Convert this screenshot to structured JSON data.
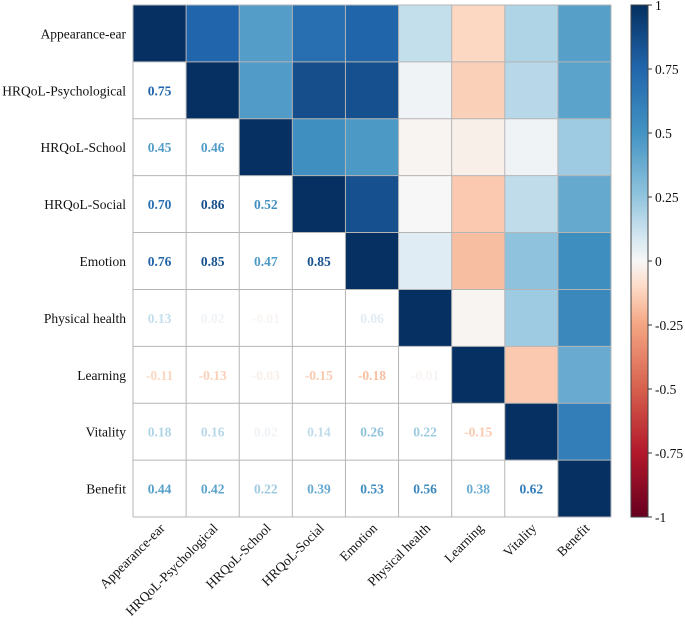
{
  "chart_data": {
    "type": "heatmap",
    "title": "",
    "variables": [
      "Appearance-ear",
      "HRQoL-Psychological",
      "HRQoL-School",
      "HRQoL-Social",
      "Emotion",
      "Physical health",
      "Learning",
      "Vitality",
      "Benefit"
    ],
    "lower_triangle_labels": [
      [
        null,
        null,
        null,
        null,
        null,
        null,
        null,
        null,
        null
      ],
      [
        "0.75",
        null,
        null,
        null,
        null,
        null,
        null,
        null,
        null
      ],
      [
        "0.45",
        "0.46",
        null,
        null,
        null,
        null,
        null,
        null,
        null
      ],
      [
        "0.70",
        "0.86",
        "0.52",
        null,
        null,
        null,
        null,
        null,
        null
      ],
      [
        "0.76",
        "0.85",
        "0.47",
        "0.85",
        null,
        null,
        null,
        null,
        null
      ],
      [
        "0.13",
        "0.02",
        "-0.01",
        "",
        "0.06",
        null,
        null,
        null,
        null
      ],
      [
        "-0.11",
        "-0.13",
        "-0.03",
        "-0.15",
        "-0.18",
        "-0.01",
        null,
        null,
        null
      ],
      [
        "0.18",
        "0.16",
        "0.02",
        "0.14",
        "0.26",
        "0.22",
        "-0.15",
        null,
        null
      ],
      [
        "0.44",
        "0.42",
        "0.22",
        "0.39",
        "0.53",
        "0.56",
        "0.38",
        "0.62",
        null
      ]
    ],
    "matrix": [
      [
        1,
        0.75,
        0.45,
        0.7,
        0.76,
        0.13,
        -0.11,
        0.18,
        0.44
      ],
      [
        0.75,
        1,
        0.46,
        0.86,
        0.85,
        0.02,
        -0.13,
        0.16,
        0.42
      ],
      [
        0.45,
        0.46,
        1,
        0.52,
        0.47,
        -0.01,
        -0.03,
        0.02,
        0.22
      ],
      [
        0.7,
        0.86,
        0.52,
        1,
        0.85,
        0.0,
        -0.15,
        0.14,
        0.39
      ],
      [
        0.76,
        0.85,
        0.47,
        0.85,
        1,
        0.06,
        -0.18,
        0.26,
        0.53
      ],
      [
        0.13,
        0.02,
        -0.01,
        0.0,
        0.06,
        1,
        -0.01,
        0.22,
        0.56
      ],
      [
        -0.11,
        -0.13,
        -0.03,
        -0.15,
        -0.18,
        -0.01,
        1,
        -0.15,
        0.38
      ],
      [
        0.18,
        0.16,
        0.02,
        0.14,
        0.26,
        0.22,
        -0.15,
        1,
        0.62
      ],
      [
        0.44,
        0.42,
        0.22,
        0.39,
        0.53,
        0.56,
        0.38,
        0.62,
        1
      ]
    ],
    "vrange": [
      -1,
      1
    ],
    "colormap": "RdBu",
    "colorbar_ticks": [
      "1",
      "0.75",
      "0.5",
      "0.25",
      "0",
      "-0.25",
      "-0.5",
      "-0.75",
      "-1"
    ],
    "colorbar_tick_values": [
      1,
      0.75,
      0.5,
      0.25,
      0,
      -0.25,
      -0.5,
      -0.75,
      -1
    ],
    "upper_triangle": "color",
    "lower_triangle": "numbers",
    "colors": {
      "pos_max": "#053061",
      "neg_max": "#67001f",
      "neutral": "#f7f7f7"
    }
  }
}
